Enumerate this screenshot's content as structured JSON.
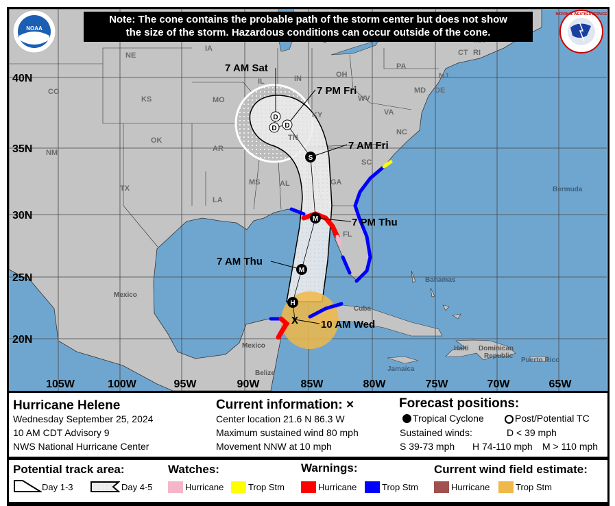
{
  "note": {
    "line1": "Note: The cone contains the probable path of the storm center but does not show",
    "line2": "the size of the storm. Hazardous conditions can occur outside of the cone."
  },
  "logos": {
    "left": "NOAA",
    "right": "NATIONAL WEATHER SERVICE"
  },
  "map": {
    "latitudes": [
      "40N",
      "35N",
      "30N",
      "25N",
      "20N"
    ],
    "longitudes": [
      "105W",
      "100W",
      "95W",
      "90W",
      "85W",
      "80W",
      "75W",
      "70W",
      "65W"
    ],
    "states": [
      "NE",
      "IA",
      "CO",
      "KS",
      "MO",
      "IL",
      "IN",
      "OH",
      "PA",
      "WV",
      "VA",
      "KY",
      "TN",
      "NC",
      "SC",
      "GA",
      "AL",
      "MS",
      "AR",
      "OK",
      "TX",
      "LA",
      "NM",
      "FL",
      "MA",
      "CT",
      "RI",
      "NJ",
      "MD",
      "DE"
    ],
    "countries": [
      "Mexico",
      "Mexico",
      "Belize",
      "Cuba",
      "Bahamas",
      "Haiti",
      "Dominican",
      "Republic",
      "Puerto Rico",
      "Jamaica",
      "Bermuda"
    ],
    "forecast_labels": [
      "10 AM Wed",
      "7 AM Thu",
      "7 PM Thu",
      "7 AM Fri",
      "7 PM Fri",
      "7 AM Sat"
    ],
    "point_symbols": [
      "H",
      "M",
      "M",
      "S",
      "D",
      "D",
      "D"
    ],
    "current_marker": "x",
    "colors": {
      "ocean": "#6fa6cf",
      "land": "#c4c4c4",
      "hurricane_watch": "#f4b6c8",
      "trop_storm_watch": "#ffff00",
      "hurricane_warning": "#ff0000",
      "trop_storm_warning": "#0000ff",
      "hurricane_wind": "#a0504f",
      "trop_storm_wind": "#f0b848"
    }
  },
  "info": {
    "storm_name": "Hurricane Helene",
    "date": "Wednesday September 25, 2024",
    "advisory": "10 AM CDT Advisory 9",
    "center": "NWS National Hurricane Center",
    "current_title": "Current information: ×",
    "location": "Center location 21.6 N 86.3 W",
    "max_wind": "Maximum sustained wind 80 mph",
    "movement": "Movement NNW at 10 mph",
    "forecast_title": "Forecast positions:",
    "tropical_cyclone": "Tropical Cyclone",
    "post_tc": "Post/Potential TC",
    "sustained": "Sustained winds:",
    "d_def": "D < 39 mph",
    "s_def": "S 39-73 mph",
    "h_def": "H 74-110 mph",
    "m_def": "M > 110 mph"
  },
  "legend": {
    "track_title": "Potential track area:",
    "day13": "Day 1-3",
    "day45": "Day 4-5",
    "watches_title": "Watches:",
    "warnings_title": "Warnings:",
    "wind_title": "Current wind field estimate:",
    "hurricane": "Hurricane",
    "trop_stm": "Trop Stm"
  }
}
